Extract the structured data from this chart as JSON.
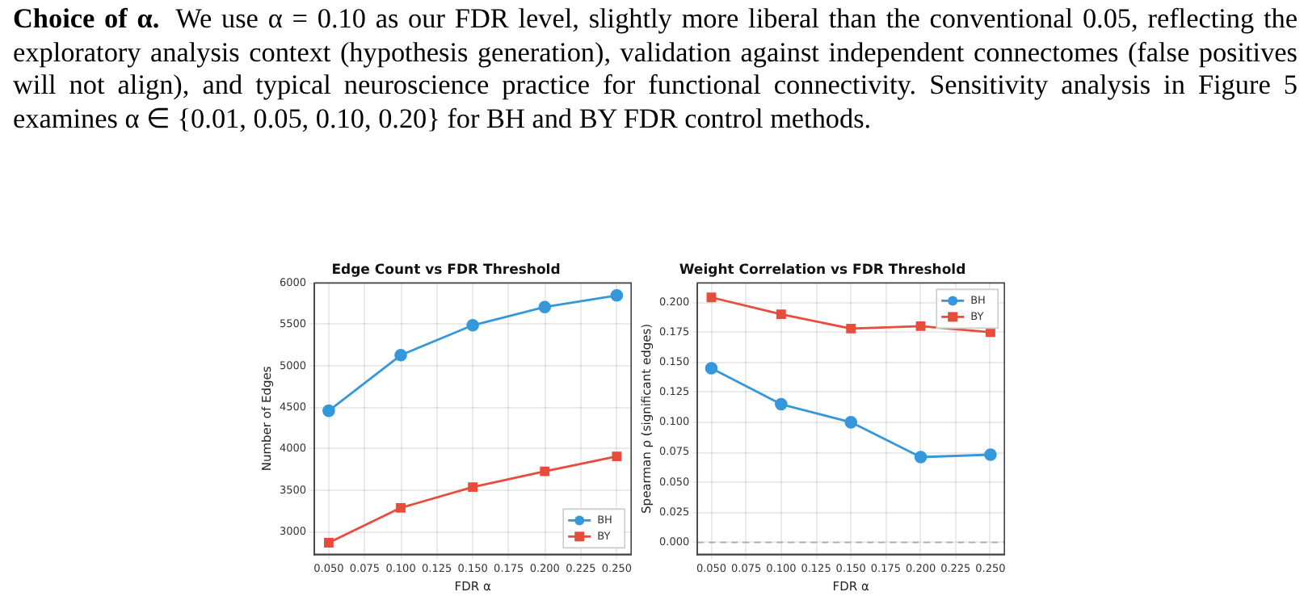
{
  "chart_data": [
    {
      "type": "line",
      "title": "Edge Count vs FDR Threshold",
      "xlabel": "FDR α",
      "ylabel": "Number of Edges",
      "annotations": [
        "Choice of α.",
        "We use α = 0.10 as our FDR level, slightly more liberal than the conventional 0.05, reflecting the exploratory analysis context (hypothesis generation), validation against independent connectomes (false positives will not align), and typical neuroscience practice for functional connectivity. Sensitivity analysis in Figure 5 examines α ∈ {0.01, 0.05, 0.10, 0.20} for BH and BY FDR control methods."
      ],
      "x": [
        0.05,
        0.1,
        0.15,
        0.2,
        0.25
      ],
      "series": [
        {
          "name": "BH",
          "color": "#3498db",
          "marker": "circle",
          "values": [
            4460,
            5130,
            5490,
            5710,
            5850
          ]
        },
        {
          "name": "BY",
          "color": "#e74c3c",
          "marker": "square",
          "values": [
            2870,
            3290,
            3540,
            3730,
            3910
          ]
        }
      ],
      "xlim": [
        0.04,
        0.26
      ],
      "ylim": [
        2730,
        6000
      ],
      "xticks": [
        {
          "value": 0.05,
          "label": "0.050"
        },
        {
          "value": 0.075,
          "label": "0.075"
        },
        {
          "value": 0.1,
          "label": "0.100"
        },
        {
          "value": 0.125,
          "label": "0.125"
        },
        {
          "value": 0.15,
          "label": "0.150"
        },
        {
          "value": 0.175,
          "label": "0.175"
        },
        {
          "value": 0.2,
          "label": "0.200"
        },
        {
          "value": 0.225,
          "label": "0.225"
        },
        {
          "value": 0.25,
          "label": "0.250"
        }
      ],
      "yticks": [
        3000,
        3500,
        4000,
        4500,
        5000,
        5500,
        6000
      ],
      "grid": true,
      "legend": "bottom right",
      "line_style": "solid"
    },
    {
      "type": "line",
      "title": "Weight Correlation vs FDR Threshold",
      "xlabel": "FDR α",
      "ylabel": "Spearman ρ (significant edges)",
      "x": [
        0.05,
        0.1,
        0.15,
        0.2,
        0.25
      ],
      "series": [
        {
          "name": "BH",
          "color": "#3498db",
          "marker": "circle",
          "values": [
            0.145,
            0.115,
            0.1,
            0.071,
            0.073
          ]
        },
        {
          "name": "BY",
          "color": "#e74c3c",
          "marker": "square",
          "values": [
            0.204,
            0.19,
            0.178,
            0.18,
            0.175
          ]
        }
      ],
      "xlim": [
        0.04,
        0.26
      ],
      "ylim": [
        -0.01,
        0.216
      ],
      "xticks": [
        {
          "value": 0.05,
          "label": "0.050"
        },
        {
          "value": 0.075,
          "label": "0.075"
        },
        {
          "value": 0.1,
          "label": "0.100"
        },
        {
          "value": 0.125,
          "label": "0.125"
        },
        {
          "value": 0.15,
          "label": "0.150"
        },
        {
          "value": 0.175,
          "label": "0.175"
        },
        {
          "value": 0.2,
          "label": "0.200"
        },
        {
          "value": 0.225,
          "label": "0.225"
        },
        {
          "value": 0.25,
          "label": "0.250"
        }
      ],
      "yticks": [
        {
          "value": 0,
          "label": "0.000"
        },
        {
          "value": 0.025,
          "label": "0.025"
        },
        {
          "value": 0.05,
          "label": "0.050"
        },
        {
          "value": 0.075,
          "label": "0.075"
        },
        {
          "value": 0.1,
          "label": "0.100"
        },
        {
          "value": 0.125,
          "label": "0.125"
        },
        {
          "value": 0.15,
          "label": "0.150"
        },
        {
          "value": 0.175,
          "label": "0.175"
        },
        {
          "value": 0.2,
          "label": "0.200"
        }
      ],
      "ref_lines": [
        {
          "axis": "y",
          "value": 0,
          "color": "#aaaaaa",
          "line_style": "dashed"
        }
      ],
      "grid": true,
      "legend": "top right",
      "line_style": "solid"
    }
  ]
}
